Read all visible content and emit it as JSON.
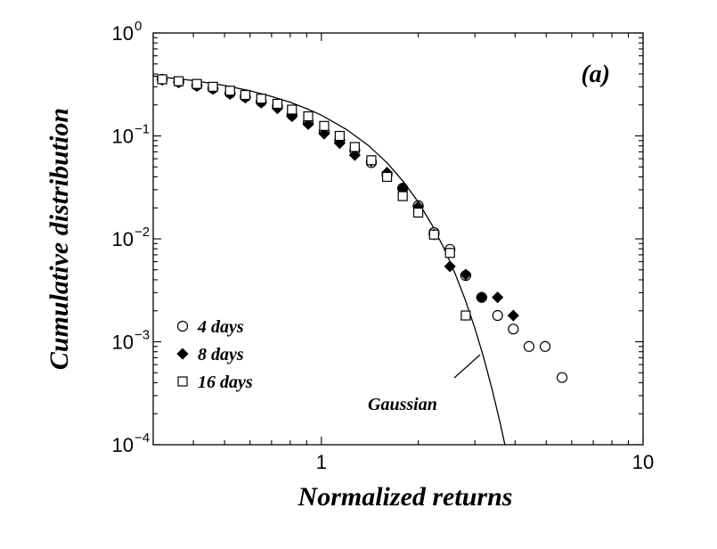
{
  "chart_data": {
    "type": "scatter",
    "panel_label": "(a)",
    "xlabel": "Normalized returns",
    "ylabel": "Cumulative distribution",
    "xscale": "log",
    "yscale": "log",
    "xlim": [
      0.3,
      10
    ],
    "ylim": [
      0.0001,
      1
    ],
    "x_ticks": [
      {
        "value": 1,
        "label": "1"
      },
      {
        "value": 10,
        "label": "10"
      }
    ],
    "y_ticks": [
      {
        "value": 1,
        "base": "10",
        "exp": "0"
      },
      {
        "value": 0.1,
        "base": "10",
        "exp": "−1"
      },
      {
        "value": 0.01,
        "base": "10",
        "exp": "−2"
      },
      {
        "value": 0.001,
        "base": "10",
        "exp": "−3"
      },
      {
        "value": 0.0001,
        "base": "10",
        "exp": "−4"
      }
    ],
    "legend_position": "bottom-left",
    "series": [
      {
        "name": "4 days",
        "marker": "open-circle",
        "x": [
          0.32,
          0.36,
          0.41,
          0.46,
          0.52,
          0.58,
          0.65,
          0.73,
          0.81,
          0.91,
          1.02,
          1.14,
          1.27,
          1.43,
          1.6,
          1.79,
          2.0,
          2.24,
          2.51,
          2.81,
          3.15,
          3.53,
          3.95,
          4.42,
          4.96,
          5.6
        ],
        "y": [
          0.355,
          0.335,
          0.31,
          0.29,
          0.26,
          0.24,
          0.215,
          0.195,
          0.16,
          0.135,
          0.11,
          0.09,
          0.072,
          0.055,
          0.042,
          0.031,
          0.021,
          0.0115,
          0.0079,
          0.0044,
          0.0027,
          0.0018,
          0.00133,
          0.0009,
          0.0009,
          0.00045
        ]
      },
      {
        "name": "8 days",
        "marker": "filled-diamond",
        "x": [
          0.32,
          0.36,
          0.41,
          0.46,
          0.52,
          0.58,
          0.65,
          0.73,
          0.81,
          0.91,
          1.02,
          1.14,
          1.27,
          1.43,
          1.6,
          1.79,
          2.0,
          2.24,
          2.51,
          2.81,
          3.15,
          3.53,
          3.95
        ],
        "y": [
          0.35,
          0.33,
          0.305,
          0.285,
          0.255,
          0.235,
          0.21,
          0.185,
          0.155,
          0.13,
          0.105,
          0.085,
          0.065,
          0.057,
          0.044,
          0.031,
          0.0205,
          0.011,
          0.0054,
          0.0045,
          0.0027,
          0.0027,
          0.0018
        ]
      },
      {
        "name": "16 days",
        "marker": "open-square",
        "x": [
          0.32,
          0.36,
          0.41,
          0.46,
          0.52,
          0.58,
          0.65,
          0.73,
          0.81,
          0.91,
          1.02,
          1.14,
          1.27,
          1.43,
          1.6,
          1.79,
          2.0,
          2.24,
          2.51,
          2.81
        ],
        "y": [
          0.355,
          0.34,
          0.32,
          0.3,
          0.275,
          0.25,
          0.23,
          0.205,
          0.18,
          0.155,
          0.125,
          0.1,
          0.078,
          0.058,
          0.04,
          0.026,
          0.018,
          0.011,
          0.0073,
          0.0018
        ]
      }
    ],
    "curve": {
      "name": "Gaussian",
      "style": "solid-line",
      "x": [
        0.3,
        0.4,
        0.5,
        0.6,
        0.7,
        0.8,
        0.9,
        1.0,
        1.2,
        1.4,
        1.6,
        1.8,
        2.0,
        2.2,
        2.4,
        2.6,
        2.8,
        3.0,
        3.2,
        3.4,
        3.6,
        3.72
      ],
      "y": [
        0.382,
        0.345,
        0.309,
        0.274,
        0.242,
        0.212,
        0.184,
        0.159,
        0.115,
        0.0808,
        0.0548,
        0.0359,
        0.0228,
        0.0139,
        0.0082,
        0.00466,
        0.00256,
        0.00135,
        0.00069,
        0.000337,
        0.000159,
        0.0001
      ]
    },
    "annotation": {
      "text": "Gaussian"
    }
  }
}
